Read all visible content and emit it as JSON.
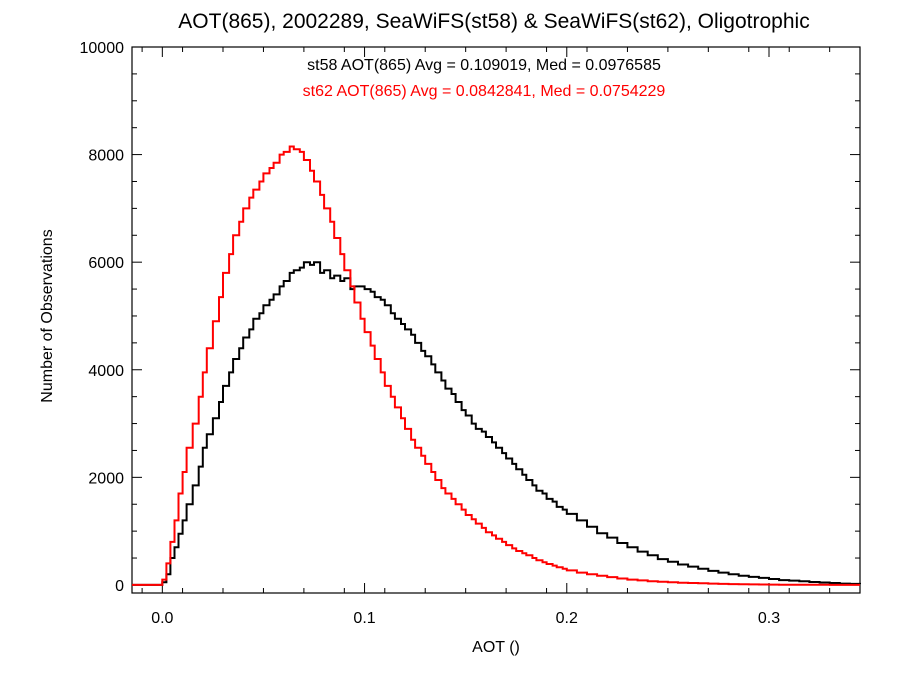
{
  "chart_data": {
    "type": "line",
    "title": "AOT(865), 2002289, SeaWiFS(st58) & SeaWiFS(st62), Oligotrophic",
    "xlabel": "AOT ()",
    "ylabel": "Number of Observations",
    "xlim": [
      -0.015,
      0.345
    ],
    "ylim": [
      -150,
      10000
    ],
    "x_ticks": [
      0.0,
      0.1,
      0.2,
      0.3
    ],
    "x_tick_labels": [
      "0.0",
      "0.1",
      "0.2",
      "0.3"
    ],
    "y_ticks": [
      0,
      2000,
      4000,
      6000,
      8000,
      10000
    ],
    "y_tick_labels": [
      "0",
      "2000",
      "4000",
      "6000",
      "8000",
      "10000"
    ],
    "grid": false,
    "annotations": [
      {
        "text": "st58 AOT(865) Avg = 0.109019, Med = 0.0976585",
        "color": "#000000"
      },
      {
        "text": "st62 AOT(865) Avg = 0.0842841, Med = 0.0754229",
        "color": "#ff0000"
      }
    ],
    "series": [
      {
        "color": "#000000",
        "x": [
          -0.015,
          -0.005,
          0.0,
          0.002,
          0.004,
          0.006,
          0.008,
          0.01,
          0.012,
          0.015,
          0.018,
          0.02,
          0.022,
          0.025,
          0.028,
          0.03,
          0.033,
          0.035,
          0.038,
          0.04,
          0.043,
          0.045,
          0.048,
          0.05,
          0.053,
          0.055,
          0.058,
          0.06,
          0.063,
          0.065,
          0.068,
          0.07,
          0.073,
          0.075,
          0.078,
          0.08,
          0.083,
          0.085,
          0.088,
          0.09,
          0.093,
          0.095,
          0.098,
          0.1,
          0.103,
          0.105,
          0.108,
          0.11,
          0.113,
          0.115,
          0.118,
          0.12,
          0.123,
          0.125,
          0.128,
          0.13,
          0.133,
          0.135,
          0.138,
          0.14,
          0.143,
          0.145,
          0.148,
          0.15,
          0.153,
          0.155,
          0.158,
          0.16,
          0.163,
          0.165,
          0.168,
          0.17,
          0.173,
          0.175,
          0.178,
          0.18,
          0.183,
          0.185,
          0.188,
          0.19,
          0.193,
          0.195,
          0.198,
          0.2,
          0.205,
          0.21,
          0.215,
          0.22,
          0.225,
          0.23,
          0.235,
          0.24,
          0.245,
          0.25,
          0.255,
          0.26,
          0.265,
          0.27,
          0.275,
          0.28,
          0.285,
          0.29,
          0.295,
          0.3,
          0.305,
          0.31,
          0.315,
          0.32,
          0.325,
          0.33,
          0.335,
          0.34,
          0.345
        ],
        "y": [
          0,
          0,
          50,
          200,
          500,
          700,
          950,
          1200,
          1500,
          1850,
          2200,
          2550,
          2800,
          3100,
          3400,
          3700,
          3950,
          4200,
          4400,
          4600,
          4750,
          4950,
          5050,
          5200,
          5300,
          5400,
          5550,
          5650,
          5800,
          5850,
          5900,
          6000,
          5950,
          6000,
          5800,
          5850,
          5700,
          5750,
          5650,
          5700,
          5500,
          5550,
          5550,
          5500,
          5450,
          5350,
          5300,
          5200,
          5050,
          4950,
          4850,
          4750,
          4650,
          4500,
          4350,
          4250,
          4100,
          3950,
          3800,
          3650,
          3550,
          3400,
          3250,
          3150,
          3000,
          2900,
          2850,
          2750,
          2650,
          2550,
          2450,
          2350,
          2250,
          2150,
          2050,
          1950,
          1850,
          1750,
          1700,
          1600,
          1550,
          1450,
          1400,
          1320,
          1200,
          1080,
          960,
          880,
          780,
          700,
          620,
          550,
          480,
          430,
          380,
          340,
          300,
          260,
          230,
          200,
          170,
          150,
          130,
          110,
          90,
          80,
          70,
          55,
          45,
          35,
          25,
          20,
          15
        ]
      },
      {
        "color": "#ff0000",
        "x": [
          -0.015,
          -0.005,
          0.0,
          0.002,
          0.004,
          0.006,
          0.008,
          0.01,
          0.012,
          0.015,
          0.018,
          0.02,
          0.022,
          0.025,
          0.028,
          0.03,
          0.033,
          0.035,
          0.038,
          0.04,
          0.043,
          0.045,
          0.048,
          0.05,
          0.053,
          0.055,
          0.058,
          0.06,
          0.063,
          0.065,
          0.068,
          0.07,
          0.073,
          0.075,
          0.078,
          0.08,
          0.083,
          0.085,
          0.088,
          0.09,
          0.093,
          0.095,
          0.098,
          0.1,
          0.103,
          0.105,
          0.108,
          0.11,
          0.113,
          0.115,
          0.118,
          0.12,
          0.123,
          0.125,
          0.128,
          0.13,
          0.133,
          0.135,
          0.138,
          0.14,
          0.143,
          0.145,
          0.148,
          0.15,
          0.153,
          0.155,
          0.158,
          0.16,
          0.163,
          0.165,
          0.168,
          0.17,
          0.173,
          0.175,
          0.178,
          0.18,
          0.183,
          0.185,
          0.188,
          0.19,
          0.193,
          0.195,
          0.198,
          0.2,
          0.205,
          0.21,
          0.215,
          0.22,
          0.225,
          0.23,
          0.235,
          0.24,
          0.245,
          0.25,
          0.255,
          0.26,
          0.265,
          0.27,
          0.275,
          0.28,
          0.285,
          0.29,
          0.295,
          0.3,
          0.305,
          0.31,
          0.315,
          0.32,
          0.325,
          0.33,
          0.335,
          0.34,
          0.345
        ],
        "y": [
          0,
          0,
          100,
          400,
          800,
          1200,
          1700,
          2100,
          2550,
          3000,
          3500,
          3950,
          4400,
          4900,
          5350,
          5800,
          6150,
          6500,
          6750,
          7000,
          7200,
          7350,
          7500,
          7650,
          7750,
          7850,
          8000,
          8050,
          8150,
          8100,
          8050,
          7900,
          7700,
          7500,
          7250,
          7000,
          6750,
          6450,
          6150,
          5850,
          5550,
          5250,
          4950,
          4700,
          4450,
          4200,
          3950,
          3700,
          3500,
          3300,
          3100,
          2900,
          2700,
          2550,
          2400,
          2250,
          2100,
          1950,
          1800,
          1700,
          1600,
          1500,
          1400,
          1300,
          1220,
          1140,
          1060,
          980,
          920,
          860,
          800,
          740,
          680,
          630,
          590,
          550,
          500,
          460,
          420,
          390,
          360,
          330,
          300,
          270,
          230,
          200,
          170,
          145,
          120,
          100,
          85,
          70,
          60,
          50,
          40,
          35,
          30,
          25,
          20,
          15,
          12,
          10,
          8,
          6,
          5,
          4,
          3,
          2,
          2,
          1,
          1,
          0,
          0
        ]
      }
    ]
  }
}
